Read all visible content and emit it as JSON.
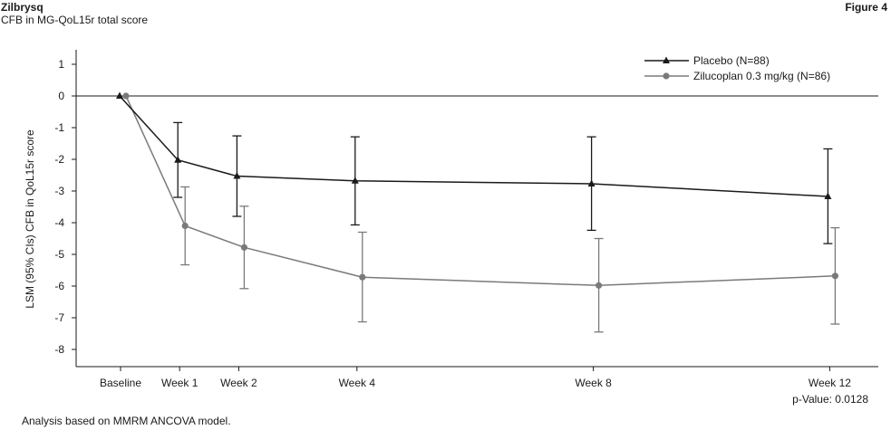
{
  "header": {
    "brand": "Zilbrysq",
    "subtitle": "CFB in MG-QoL15r total score",
    "figure_label": "Figure 4"
  },
  "footnote": "Analysis based on MMRM ANCOVA model.",
  "chart_data": {
    "type": "line",
    "title": "",
    "xlabel": "",
    "ylabel": "LSM (95% CIs) CFB in QoL15r score",
    "categories": [
      "Baseline",
      "Week 1",
      "Week 2",
      "Week 4",
      "Week 8",
      "Week 12"
    ],
    "x_weeks": [
      0,
      1,
      2,
      4,
      8,
      12
    ],
    "ylim": [
      -8.5,
      1.5
    ],
    "yticks": [
      "1",
      "0",
      "-1",
      "-2",
      "-3",
      "-4",
      "-5",
      "-6",
      "-7",
      "-8"
    ],
    "reference_line": 0,
    "grid": false,
    "legend_position": "top-right",
    "series": [
      {
        "name": "Placebo (N=88)",
        "marker": "triangle",
        "color": "#1a1a1a",
        "values": [
          0,
          -2.02,
          -2.53,
          -2.68,
          -2.77,
          -3.17
        ],
        "ci_low": [
          null,
          -3.2,
          -3.8,
          -4.07,
          -4.24,
          -4.66
        ],
        "ci_high": [
          null,
          -0.84,
          -1.26,
          -1.29,
          -1.29,
          -1.67
        ]
      },
      {
        "name": "Zilucoplan 0.3 mg/kg (N=86)",
        "marker": "circle",
        "color": "#7a7a7a",
        "values": [
          0,
          -4.1,
          -4.78,
          -5.72,
          -5.98,
          -5.68
        ],
        "ci_low": [
          null,
          -5.33,
          -6.08,
          -7.13,
          -7.45,
          -7.2
        ],
        "ci_high": [
          null,
          -2.87,
          -3.48,
          -4.3,
          -4.5,
          -4.16
        ]
      }
    ],
    "annotation": "p-Value: 0.0128"
  }
}
